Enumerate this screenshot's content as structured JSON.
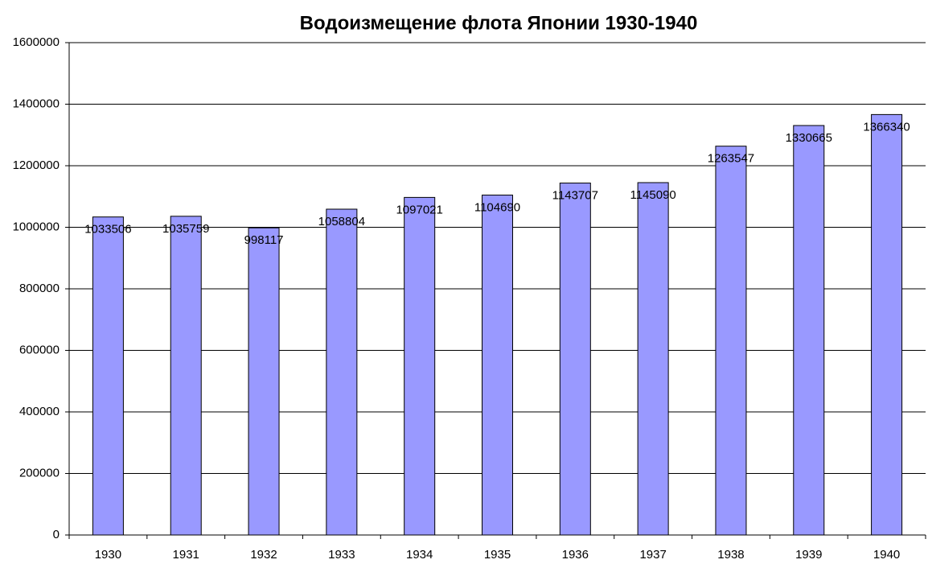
{
  "chart_data": {
    "type": "bar",
    "title": "Водоизмещение флота Японии 1930-1940",
    "categories": [
      "1930",
      "1931",
      "1932",
      "1933",
      "1934",
      "1935",
      "1936",
      "1937",
      "1938",
      "1939",
      "1940"
    ],
    "values": [
      1033506,
      1035759,
      998117,
      1058804,
      1097021,
      1104690,
      1143707,
      1145090,
      1263547,
      1330665,
      1366340
    ],
    "color": "#9999ff",
    "ylim": [
      0,
      1600000
    ],
    "yticks": [
      0,
      200000,
      400000,
      600000,
      800000,
      1000000,
      1200000,
      1400000,
      1600000
    ],
    "grid": true
  }
}
